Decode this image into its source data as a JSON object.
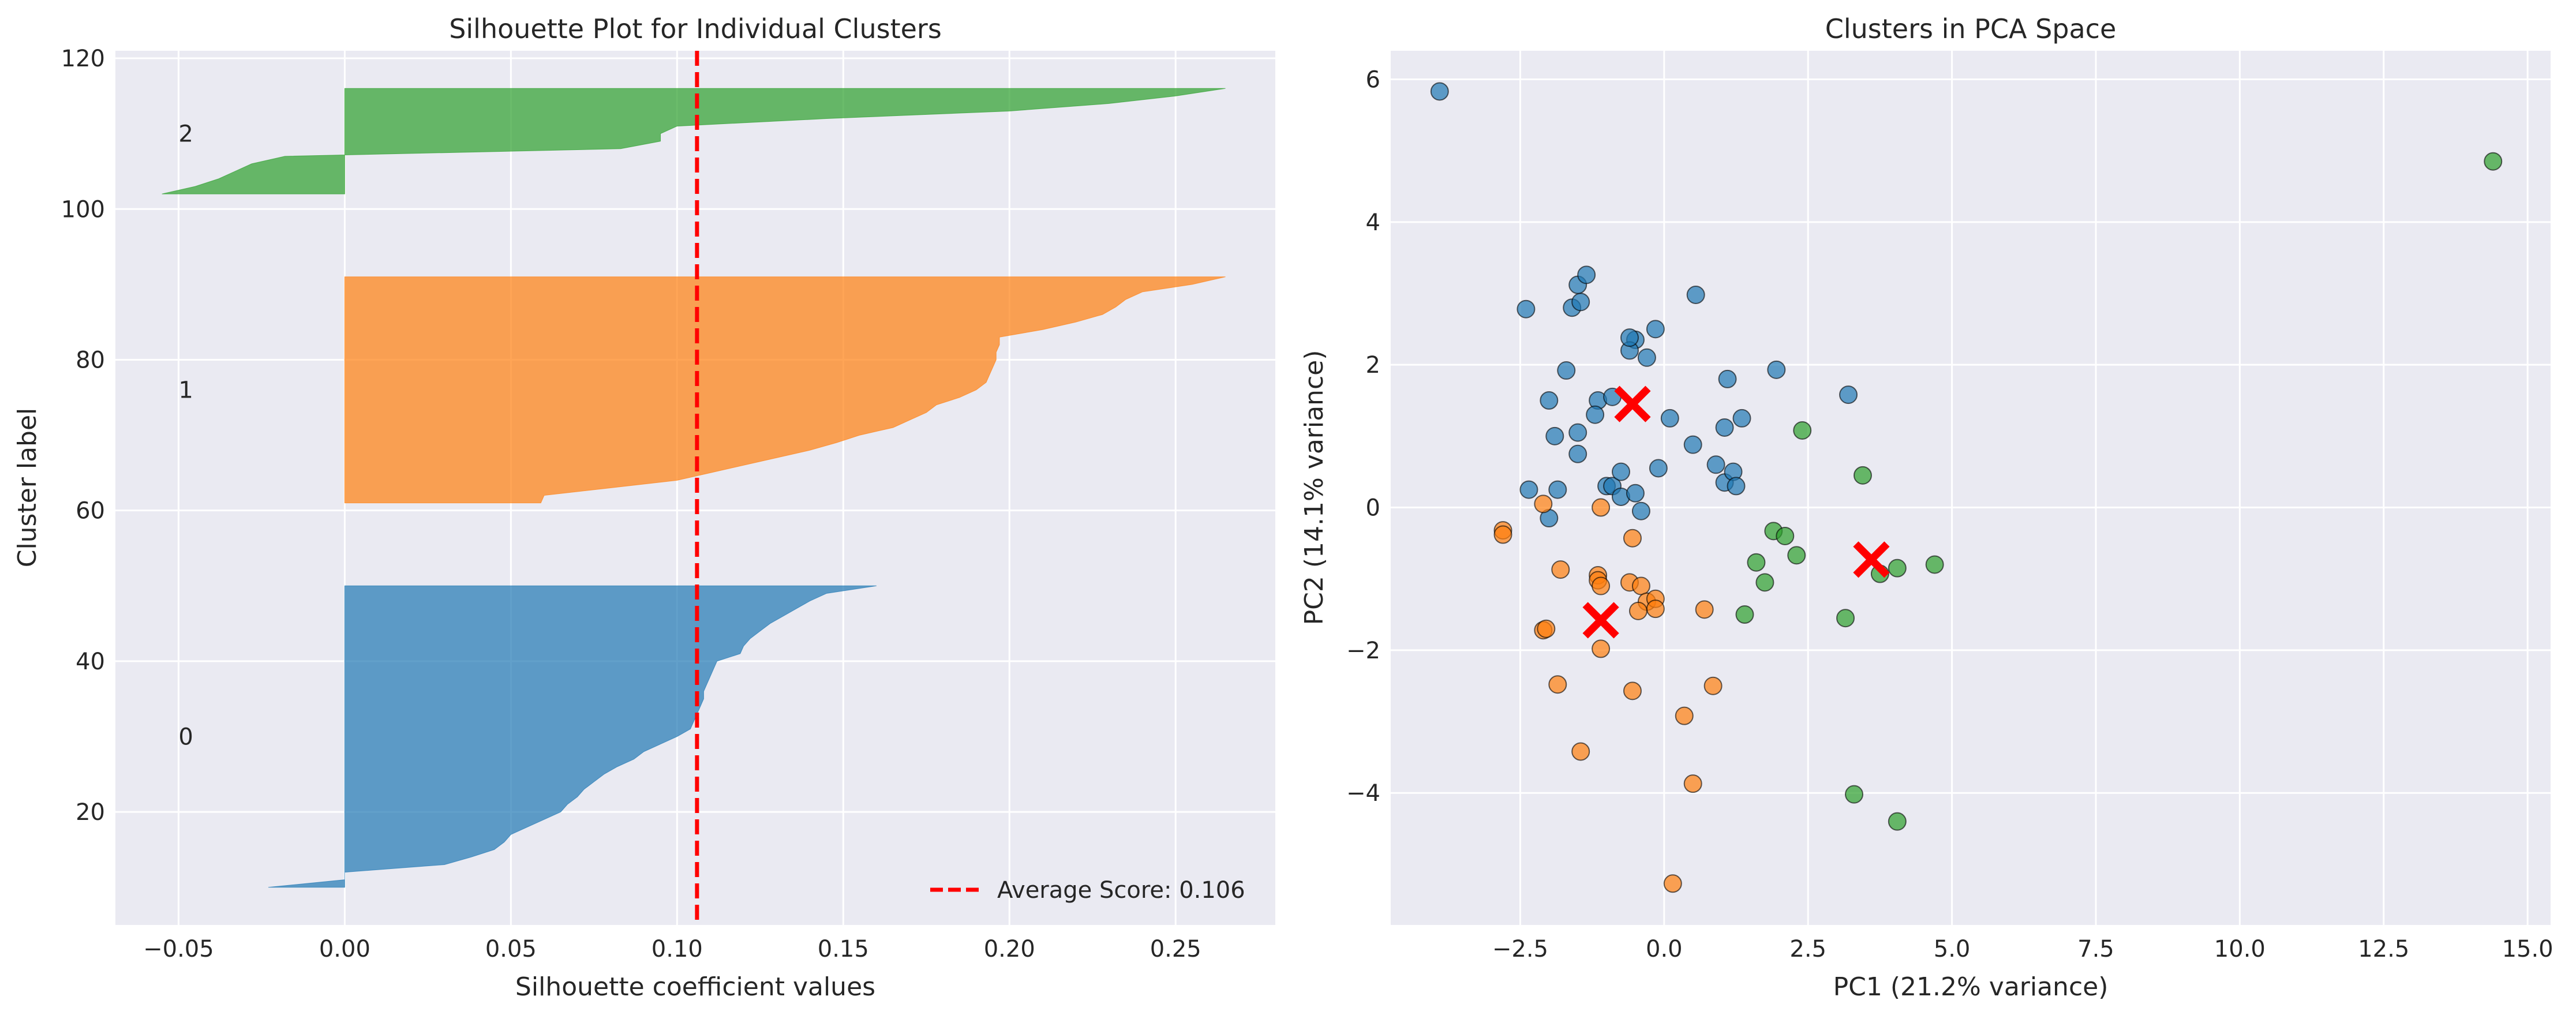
{
  "chart_data": [
    {
      "type": "area",
      "title": "Silhouette Plot for Individual Clusters",
      "xlabel": "Silhouette coefficient values",
      "ylabel": "Cluster label",
      "xlim": [
        -0.069,
        0.28
      ],
      "ylim": [
        5,
        121
      ],
      "xticks": [
        -0.05,
        0.0,
        0.05,
        0.1,
        0.15,
        0.2,
        0.25
      ],
      "xtick_labels": [
        "−0.05",
        "0.00",
        "0.05",
        "0.10",
        "0.15",
        "0.20",
        "0.25"
      ],
      "yticks": [
        20,
        40,
        60,
        80,
        100,
        120
      ],
      "ytick_labels": [
        "20",
        "40",
        "60",
        "80",
        "100",
        "120"
      ],
      "grid": true,
      "legend_position": "lower-right",
      "average_score": 0.106,
      "average_label": "Average Score: 0.106",
      "average_color": "#ff0000",
      "clusters": [
        {
          "label": "0",
          "label_x": -0.05,
          "label_y": 30,
          "color": "#1f77b4",
          "y_start": 10,
          "y_end": 50,
          "profile": [
            [
              10,
              -0.023
            ],
            [
              11,
              0.0
            ],
            [
              12,
              0.0
            ],
            [
              13,
              0.03
            ],
            [
              14,
              0.038
            ],
            [
              15,
              0.045
            ],
            [
              16,
              0.048
            ],
            [
              17,
              0.05
            ],
            [
              18,
              0.055
            ],
            [
              19,
              0.06
            ],
            [
              20,
              0.065
            ],
            [
              21,
              0.067
            ],
            [
              22,
              0.07
            ],
            [
              23,
              0.072
            ],
            [
              24,
              0.075
            ],
            [
              25,
              0.078
            ],
            [
              26,
              0.082
            ],
            [
              27,
              0.087
            ],
            [
              28,
              0.09
            ],
            [
              29,
              0.095
            ],
            [
              30,
              0.1
            ],
            [
              31,
              0.104
            ],
            [
              32,
              0.105
            ],
            [
              33,
              0.106
            ],
            [
              34,
              0.107
            ],
            [
              35,
              0.108
            ],
            [
              36,
              0.108
            ],
            [
              37,
              0.109
            ],
            [
              38,
              0.11
            ],
            [
              39,
              0.111
            ],
            [
              40,
              0.112
            ],
            [
              41,
              0.119
            ],
            [
              42,
              0.12
            ],
            [
              43,
              0.122
            ],
            [
              44,
              0.125
            ],
            [
              45,
              0.128
            ],
            [
              46,
              0.132
            ],
            [
              47,
              0.136
            ],
            [
              48,
              0.14
            ],
            [
              49,
              0.145
            ],
            [
              50,
              0.16
            ]
          ]
        },
        {
          "label": "1",
          "label_x": -0.05,
          "label_y": 76,
          "color": "#ff7f0e",
          "y_start": 61,
          "y_end": 91,
          "profile": [
            [
              61,
              0.059
            ],
            [
              62,
              0.06
            ],
            [
              63,
              0.08
            ],
            [
              64,
              0.1
            ],
            [
              65,
              0.11
            ],
            [
              66,
              0.12
            ],
            [
              67,
              0.13
            ],
            [
              68,
              0.14
            ],
            [
              69,
              0.148
            ],
            [
              70,
              0.155
            ],
            [
              71,
              0.165
            ],
            [
              72,
              0.17
            ],
            [
              73,
              0.175
            ],
            [
              74,
              0.178
            ],
            [
              75,
              0.185
            ],
            [
              76,
              0.19
            ],
            [
              77,
              0.193
            ],
            [
              78,
              0.194
            ],
            [
              79,
              0.195
            ],
            [
              80,
              0.196
            ],
            [
              81,
              0.196
            ],
            [
              82,
              0.197
            ],
            [
              83,
              0.197
            ],
            [
              84,
              0.21
            ],
            [
              85,
              0.22
            ],
            [
              86,
              0.228
            ],
            [
              87,
              0.232
            ],
            [
              88,
              0.235
            ],
            [
              89,
              0.24
            ],
            [
              90,
              0.255
            ],
            [
              91,
              0.265
            ]
          ]
        },
        {
          "label": "2",
          "label_x": -0.05,
          "label_y": 110,
          "color": "#2ca02c",
          "y_start": 102,
          "y_end": 116,
          "profile": [
            [
              102,
              -0.055
            ],
            [
              103,
              -0.045
            ],
            [
              104,
              -0.038
            ],
            [
              105,
              -0.033
            ],
            [
              106,
              -0.028
            ],
            [
              107,
              -0.018
            ],
            [
              108,
              0.083
            ],
            [
              109,
              0.095
            ],
            [
              110,
              0.095
            ],
            [
              111,
              0.1
            ],
            [
              112,
              0.145
            ],
            [
              113,
              0.2
            ],
            [
              114,
              0.23
            ],
            [
              115,
              0.25
            ],
            [
              116,
              0.265
            ]
          ]
        }
      ]
    },
    {
      "type": "scatter",
      "title": "Clusters in PCA Space",
      "xlabel": "PC1 (21.2% variance)",
      "ylabel": "PC2 (14.1% variance)",
      "xlim": [
        -4.75,
        15.4
      ],
      "ylim": [
        -5.85,
        6.4
      ],
      "xticks": [
        -2.5,
        0.0,
        2.5,
        5.0,
        7.5,
        10.0,
        12.5,
        15.0
      ],
      "xtick_labels": [
        "−2.5",
        "0.0",
        "2.5",
        "5.0",
        "7.5",
        "10.0",
        "12.5",
        "15.0"
      ],
      "yticks": [
        -4,
        -2,
        0,
        2,
        4,
        6
      ],
      "ytick_labels": [
        "−4",
        "−2",
        "0",
        "2",
        "4",
        "6"
      ],
      "grid": true,
      "centroid_color": "#ff0000",
      "series": [
        {
          "cluster": 0,
          "color": "#1f77b4",
          "points": [
            [
              -3.9,
              5.83
            ],
            [
              -2.4,
              2.78
            ],
            [
              -1.6,
              2.8
            ],
            [
              -1.45,
              2.88
            ],
            [
              -1.5,
              3.12
            ],
            [
              -1.35,
              3.26
            ],
            [
              -0.5,
              2.35
            ],
            [
              -0.6,
              2.2
            ],
            [
              -0.6,
              2.38
            ],
            [
              -0.3,
              2.1
            ],
            [
              -0.15,
              2.5
            ],
            [
              0.55,
              2.98
            ],
            [
              -1.7,
              1.92
            ],
            [
              -2.0,
              1.5
            ],
            [
              -1.15,
              1.5
            ],
            [
              -0.9,
              1.55
            ],
            [
              -1.2,
              1.3
            ],
            [
              -1.5,
              1.05
            ],
            [
              -1.9,
              1.0
            ],
            [
              -1.5,
              0.75
            ],
            [
              0.1,
              1.25
            ],
            [
              0.5,
              0.88
            ],
            [
              1.05,
              1.12
            ],
            [
              1.1,
              1.8
            ],
            [
              1.35,
              1.25
            ],
            [
              1.95,
              1.93
            ],
            [
              3.2,
              1.58
            ],
            [
              -2.35,
              0.25
            ],
            [
              -1.85,
              0.25
            ],
            [
              -1.0,
              0.3
            ],
            [
              -0.9,
              0.3
            ],
            [
              -0.75,
              0.5
            ],
            [
              -0.75,
              0.15
            ],
            [
              -0.5,
              0.2
            ],
            [
              -0.1,
              0.55
            ],
            [
              -0.4,
              -0.05
            ],
            [
              -2.0,
              -0.15
            ],
            [
              0.9,
              0.6
            ],
            [
              1.05,
              0.35
            ],
            [
              1.2,
              0.5
            ],
            [
              1.25,
              0.3
            ]
          ]
        },
        {
          "cluster": 1,
          "color": "#ff7f0e",
          "points": [
            [
              -2.8,
              -0.32
            ],
            [
              -2.8,
              -0.38
            ],
            [
              -2.1,
              0.05
            ],
            [
              -1.1,
              0.0
            ],
            [
              -0.55,
              -0.43
            ],
            [
              -1.8,
              -0.87
            ],
            [
              -1.15,
              -0.95
            ],
            [
              -1.15,
              -1.02
            ],
            [
              -1.1,
              -1.1
            ],
            [
              -0.6,
              -1.05
            ],
            [
              -0.4,
              -1.1
            ],
            [
              -0.3,
              -1.32
            ],
            [
              -0.15,
              -1.28
            ],
            [
              -0.15,
              -1.42
            ],
            [
              -0.45,
              -1.45
            ],
            [
              0.7,
              -1.43
            ],
            [
              -2.1,
              -1.72
            ],
            [
              -2.05,
              -1.7
            ],
            [
              -1.1,
              -1.98
            ],
            [
              -1.85,
              -2.48
            ],
            [
              -0.55,
              -2.57
            ],
            [
              0.85,
              -2.5
            ],
            [
              0.35,
              -2.92
            ],
            [
              -1.45,
              -3.42
            ],
            [
              0.5,
              -3.87
            ],
            [
              0.15,
              -5.27
            ]
          ]
        },
        {
          "cluster": 2,
          "color": "#2ca02c",
          "points": [
            [
              14.4,
              4.85
            ],
            [
              2.4,
              1.08
            ],
            [
              3.45,
              0.45
            ],
            [
              1.9,
              -0.33
            ],
            [
              2.1,
              -0.4
            ],
            [
              2.3,
              -0.67
            ],
            [
              1.6,
              -0.77
            ],
            [
              1.75,
              -1.05
            ],
            [
              1.4,
              -1.5
            ],
            [
              3.15,
              -1.55
            ],
            [
              3.75,
              -0.93
            ],
            [
              4.05,
              -0.85
            ],
            [
              4.7,
              -0.8
            ],
            [
              3.3,
              -4.02
            ],
            [
              4.05,
              -4.4
            ]
          ]
        }
      ],
      "centroids": [
        [
          -0.55,
          1.45
        ],
        [
          -1.1,
          -1.58
        ],
        [
          3.6,
          -0.73
        ]
      ]
    }
  ]
}
